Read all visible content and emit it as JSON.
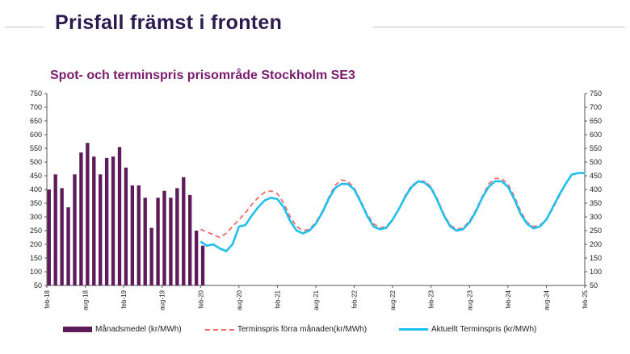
{
  "slide": {
    "title": "Prisfall främst i fronten"
  },
  "colors": {
    "bars": "#5e1a5b",
    "previous_forward": "#f26b6b",
    "current_forward": "#20c0ee",
    "title": "#2b1a4e",
    "chart_title": "#7a1b6e"
  },
  "chart_data": {
    "type": "bar",
    "title": "Spot- och terminspris prisområde Stockholm SE3",
    "xlabel": "",
    "ylabel": "",
    "ylim": [
      50,
      750
    ],
    "yticks": [
      50,
      100,
      150,
      200,
      250,
      300,
      350,
      400,
      450,
      500,
      550,
      600,
      650,
      700,
      750
    ],
    "right_axis_mirrors_left": true,
    "grid": false,
    "legend_position": "bottom",
    "x_start": "2018-02",
    "x_end": "2025-02",
    "x_tick_labels": [
      "feb-18",
      "aug-18",
      "feb-19",
      "aug-19",
      "feb-20",
      "aug-20",
      "feb-21",
      "aug-21",
      "feb-22",
      "aug-22",
      "feb-23",
      "aug-23",
      "feb-24",
      "aug-24",
      "feb-25"
    ],
    "bars": {
      "name": "Månadsmedel (kr/MWh)",
      "months": [
        "2018-02",
        "2018-03",
        "2018-04",
        "2018-05",
        "2018-06",
        "2018-07",
        "2018-08",
        "2018-09",
        "2018-10",
        "2018-11",
        "2018-12",
        "2019-01",
        "2019-02",
        "2019-03",
        "2019-04",
        "2019-05",
        "2019-06",
        "2019-07",
        "2019-08",
        "2019-09",
        "2019-10",
        "2019-11",
        "2019-12",
        "2020-01"
      ],
      "values": [
        400,
        455,
        405,
        335,
        455,
        535,
        570,
        520,
        455,
        515,
        520,
        555,
        480,
        415,
        415,
        370,
        260,
        370,
        395,
        370,
        405,
        445,
        380,
        250
      ]
    },
    "bars_feb20": {
      "month": "2020-02",
      "value": 195
    },
    "series": [
      {
        "name": "Terminspris förra månaden(kr/MWh)",
        "style": "dashed",
        "x": [
          "2020-02",
          "2020-03",
          "2020-04",
          "2020-05",
          "2020-06",
          "2020-07",
          "2020-08",
          "2020-09",
          "2020-10",
          "2020-11",
          "2020-12",
          "2021-01",
          "2021-02",
          "2021-03",
          "2021-04",
          "2021-05",
          "2021-06",
          "2021-07",
          "2021-08",
          "2021-09",
          "2021-10",
          "2021-11",
          "2021-12",
          "2022-01",
          "2022-02",
          "2022-03",
          "2022-04",
          "2022-05",
          "2022-06",
          "2022-07",
          "2022-08",
          "2022-09",
          "2022-10",
          "2022-11",
          "2022-12",
          "2023-01",
          "2023-02",
          "2023-03",
          "2023-04",
          "2023-05",
          "2023-06",
          "2023-07",
          "2023-08",
          "2023-09",
          "2023-10",
          "2023-11",
          "2023-12",
          "2024-01",
          "2024-02",
          "2024-03",
          "2024-04",
          "2024-05",
          "2024-06",
          "2024-07",
          "2024-08",
          "2024-09",
          "2024-10",
          "2024-11",
          "2024-12",
          "2025-01",
          "2025-02"
        ],
        "values": [
          255,
          245,
          235,
          225,
          240,
          265,
          290,
          315,
          345,
          370,
          390,
          395,
          385,
          350,
          300,
          265,
          250,
          255,
          280,
          320,
          370,
          415,
          435,
          430,
          405,
          360,
          310,
          275,
          260,
          265,
          290,
          330,
          380,
          415,
          430,
          430,
          410,
          365,
          310,
          270,
          255,
          260,
          285,
          325,
          375,
          420,
          440,
          440,
          420,
          375,
          320,
          280,
          265,
          270,
          290,
          330,
          375,
          420,
          455,
          460,
          460
        ]
      },
      {
        "name": "Aktuellt Terminspris (kr/MWh)",
        "style": "solid",
        "x": [
          "2020-02",
          "2020-03",
          "2020-04",
          "2020-05",
          "2020-06",
          "2020-07",
          "2020-08",
          "2020-09",
          "2020-10",
          "2020-11",
          "2020-12",
          "2021-01",
          "2021-02",
          "2021-03",
          "2021-04",
          "2021-05",
          "2021-06",
          "2021-07",
          "2021-08",
          "2021-09",
          "2021-10",
          "2021-11",
          "2021-12",
          "2022-01",
          "2022-02",
          "2022-03",
          "2022-04",
          "2022-05",
          "2022-06",
          "2022-07",
          "2022-08",
          "2022-09",
          "2022-10",
          "2022-11",
          "2022-12",
          "2023-01",
          "2023-02",
          "2023-03",
          "2023-04",
          "2023-05",
          "2023-06",
          "2023-07",
          "2023-08",
          "2023-09",
          "2023-10",
          "2023-11",
          "2023-12",
          "2024-01",
          "2024-02",
          "2024-03",
          "2024-04",
          "2024-05",
          "2024-06",
          "2024-07",
          "2024-08",
          "2024-09",
          "2024-10",
          "2024-11",
          "2024-12",
          "2025-01",
          "2025-02"
        ],
        "values": [
          210,
          195,
          200,
          185,
          175,
          200,
          265,
          270,
          305,
          335,
          360,
          370,
          365,
          335,
          285,
          250,
          240,
          250,
          275,
          315,
          365,
          405,
          420,
          420,
          400,
          355,
          305,
          265,
          255,
          260,
          290,
          330,
          375,
          410,
          430,
          425,
          405,
          360,
          305,
          265,
          250,
          255,
          280,
          320,
          370,
          410,
          430,
          430,
          410,
          365,
          310,
          275,
          258,
          265,
          290,
          335,
          380,
          420,
          455,
          460,
          460
        ]
      }
    ]
  }
}
